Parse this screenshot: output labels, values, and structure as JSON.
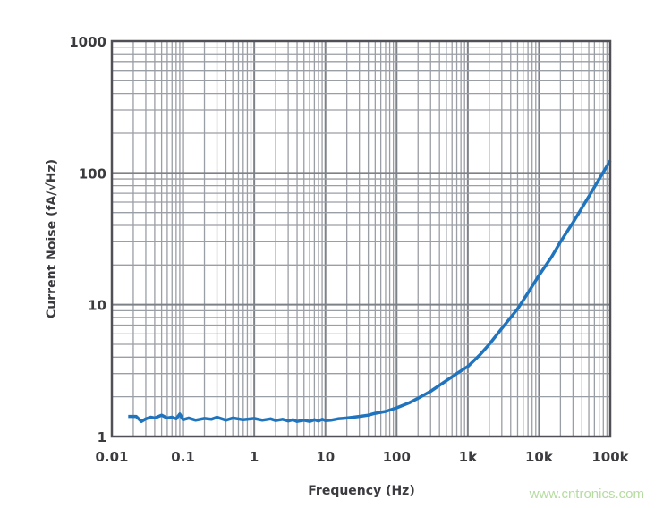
{
  "chart_data": {
    "type": "line",
    "title": "",
    "xlabel": "Frequency (Hz)",
    "ylabel": "Current Noise (fA/√Hz)",
    "x_scale": "log",
    "y_scale": "log",
    "xlim": [
      0.01,
      100000
    ],
    "ylim": [
      1,
      1000
    ],
    "grid": true,
    "x_tick_labels": [
      "0.01",
      "0.1",
      "1",
      "10",
      "100",
      "1k",
      "10k",
      "100k"
    ],
    "x_tick_values": [
      0.01,
      0.1,
      1,
      10,
      100,
      1000,
      10000,
      100000
    ],
    "y_tick_labels": [
      "1",
      "10",
      "100",
      "1000"
    ],
    "y_tick_values": [
      1,
      10,
      100,
      1000
    ],
    "series": [
      {
        "color": "#1f74bd",
        "x": [
          0.017,
          0.022,
          0.026,
          0.03,
          0.035,
          0.04,
          0.05,
          0.06,
          0.07,
          0.08,
          0.09,
          0.1,
          0.12,
          0.15,
          0.2,
          0.25,
          0.3,
          0.4,
          0.5,
          0.7,
          1,
          1.3,
          1.7,
          2,
          2.5,
          3,
          3.5,
          4,
          5,
          6,
          7,
          8,
          9,
          10,
          12,
          15,
          20,
          30,
          40,
          50,
          70,
          100,
          150,
          200,
          300,
          500,
          700,
          1000,
          1500,
          2000,
          3000,
          5000,
          7000,
          10000,
          15000,
          20000,
          30000,
          50000,
          70000,
          100000
        ],
        "y": [
          1.42,
          1.42,
          1.3,
          1.36,
          1.4,
          1.38,
          1.45,
          1.38,
          1.4,
          1.36,
          1.48,
          1.34,
          1.38,
          1.33,
          1.37,
          1.35,
          1.4,
          1.33,
          1.38,
          1.34,
          1.37,
          1.33,
          1.36,
          1.32,
          1.35,
          1.31,
          1.34,
          1.3,
          1.33,
          1.3,
          1.34,
          1.31,
          1.35,
          1.32,
          1.33,
          1.36,
          1.38,
          1.42,
          1.45,
          1.5,
          1.55,
          1.65,
          1.8,
          1.95,
          2.2,
          2.65,
          3.0,
          3.4,
          4.2,
          5.0,
          6.6,
          9.3,
          12.3,
          16.7,
          23,
          30,
          42,
          66,
          90,
          124
        ]
      }
    ]
  },
  "watermark": "www.cntronics.com"
}
